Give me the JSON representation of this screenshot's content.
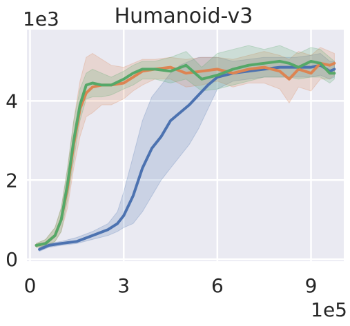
{
  "chart_data": {
    "type": "line",
    "title": "Humanoid-v3",
    "xlabel": "",
    "ylabel": "",
    "x_multiplier_label": "1e5",
    "y_multiplier_label": "1e3",
    "xlim": [
      -0.1,
      10.05
    ],
    "ylim": [
      -0.05,
      5.8
    ],
    "x_ticks": [
      0,
      3,
      6,
      9
    ],
    "x_tick_labels": [
      "0",
      "3",
      "6",
      "9"
    ],
    "y_ticks": [
      0,
      2,
      4
    ],
    "y_tick_labels": [
      "0",
      "2",
      "4"
    ],
    "grid": true,
    "legend": "none",
    "colors": {
      "blue": "#4c72b0",
      "orange": "#dd8452",
      "green": "#55a868",
      "background": "#eaeaf2",
      "grid": "#ffffff"
    },
    "series": [
      {
        "color": "#4c72b0",
        "x": [
          0.3,
          0.6,
          1.0,
          1.5,
          2.0,
          2.5,
          2.8,
          3.0,
          3.3,
          3.6,
          3.9,
          4.2,
          4.5,
          4.8,
          5.1,
          5.4,
          5.7,
          6.0,
          6.5,
          7.0,
          7.5,
          8.0,
          8.5,
          9.0,
          9.3,
          9.6,
          9.75
        ],
        "y": [
          0.25,
          0.35,
          0.4,
          0.45,
          0.6,
          0.75,
          0.9,
          1.1,
          1.6,
          2.3,
          2.8,
          3.1,
          3.5,
          3.7,
          3.9,
          4.15,
          4.4,
          4.6,
          4.7,
          4.75,
          4.8,
          4.85,
          4.85,
          4.85,
          4.9,
          4.75,
          4.8
        ],
        "upper": [
          0.3,
          0.4,
          0.45,
          0.55,
          0.7,
          0.9,
          1.2,
          1.7,
          2.6,
          3.5,
          4.1,
          4.4,
          4.7,
          4.9,
          5.0,
          5.1,
          5.1,
          5.1,
          5.0,
          5.05,
          5.1,
          5.1,
          5.1,
          5.15,
          5.2,
          5.0,
          5.0
        ],
        "lower": [
          0.2,
          0.3,
          0.35,
          0.4,
          0.5,
          0.6,
          0.7,
          0.8,
          0.9,
          1.2,
          1.6,
          2.0,
          2.3,
          2.6,
          2.9,
          3.3,
          3.8,
          4.3,
          4.5,
          4.55,
          4.6,
          4.6,
          4.6,
          4.6,
          4.65,
          4.55,
          4.6
        ]
      },
      {
        "color": "#dd8452",
        "x": [
          0.2,
          0.5,
          0.8,
          1.0,
          1.2,
          1.4,
          1.6,
          1.8,
          2.0,
          2.3,
          2.6,
          3.0,
          3.3,
          3.6,
          4.0,
          4.5,
          5.0,
          5.5,
          6.0,
          6.5,
          7.0,
          7.5,
          8.0,
          8.3,
          8.6,
          9.0,
          9.3,
          9.6,
          9.75
        ],
        "y": [
          0.35,
          0.4,
          0.6,
          1.0,
          1.8,
          2.9,
          3.8,
          4.2,
          4.35,
          4.4,
          4.4,
          4.45,
          4.6,
          4.75,
          4.8,
          4.85,
          4.7,
          4.75,
          4.8,
          4.7,
          4.8,
          4.85,
          4.75,
          4.55,
          4.8,
          4.7,
          4.95,
          4.9,
          4.95
        ],
        "upper": [
          0.4,
          0.5,
          0.8,
          1.3,
          2.3,
          3.5,
          4.5,
          5.1,
          5.2,
          5.05,
          4.9,
          4.85,
          4.95,
          5.05,
          5.05,
          5.1,
          5.05,
          5.1,
          5.1,
          5.05,
          5.15,
          5.25,
          5.15,
          5.05,
          5.25,
          5.15,
          5.35,
          5.25,
          5.2
        ],
        "lower": [
          0.3,
          0.33,
          0.45,
          0.7,
          1.3,
          2.3,
          3.1,
          3.6,
          3.7,
          3.9,
          3.9,
          4.05,
          4.25,
          4.4,
          4.55,
          4.55,
          4.35,
          4.4,
          4.5,
          4.35,
          4.45,
          4.45,
          4.3,
          3.95,
          4.35,
          4.25,
          4.55,
          4.55,
          4.65
        ]
      },
      {
        "color": "#55a868",
        "x": [
          0.2,
          0.5,
          0.8,
          1.0,
          1.2,
          1.4,
          1.6,
          1.8,
          2.0,
          2.3,
          2.6,
          3.0,
          3.3,
          3.6,
          4.0,
          4.5,
          5.0,
          5.5,
          6.0,
          6.5,
          7.0,
          7.5,
          8.0,
          8.3,
          8.6,
          9.0,
          9.3,
          9.6,
          9.75
        ],
        "y": [
          0.35,
          0.4,
          0.6,
          1.0,
          1.9,
          3.0,
          3.9,
          4.4,
          4.45,
          4.4,
          4.4,
          4.55,
          4.7,
          4.8,
          4.8,
          4.75,
          4.9,
          4.55,
          4.65,
          4.8,
          4.9,
          4.95,
          5.0,
          4.95,
          4.85,
          5.0,
          4.95,
          4.7,
          4.7
        ],
        "upper": [
          0.4,
          0.5,
          0.8,
          1.3,
          2.3,
          3.5,
          4.3,
          4.7,
          4.8,
          4.7,
          4.6,
          4.75,
          4.9,
          5.0,
          5.0,
          5.1,
          5.25,
          4.85,
          5.2,
          5.3,
          5.4,
          5.3,
          5.4,
          5.3,
          5.2,
          5.35,
          5.3,
          5.1,
          5.0
        ],
        "lower": [
          0.3,
          0.33,
          0.45,
          0.7,
          1.5,
          2.5,
          3.5,
          4.05,
          4.1,
          4.1,
          4.15,
          4.3,
          4.4,
          4.55,
          4.55,
          4.45,
          4.55,
          4.25,
          4.3,
          4.4,
          4.5,
          4.6,
          4.6,
          4.6,
          4.55,
          4.6,
          4.6,
          4.45,
          4.55
        ]
      }
    ]
  }
}
